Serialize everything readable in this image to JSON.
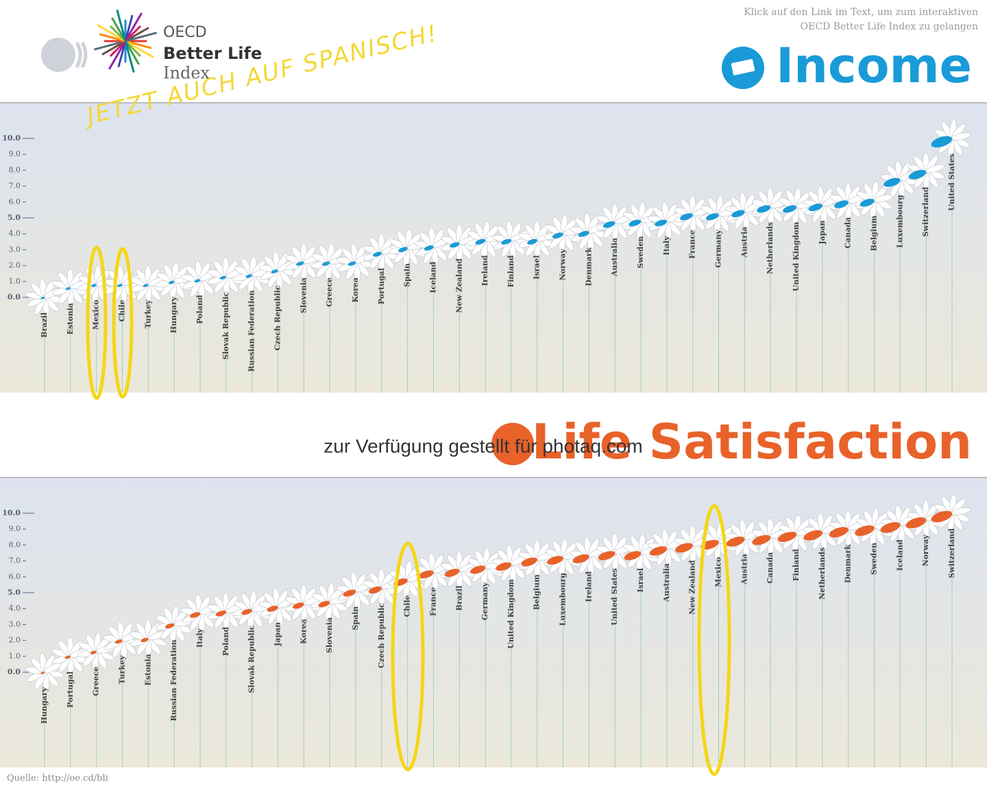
{
  "header": {
    "logo_top": "OECD",
    "logo_middle": "Better Life",
    "logo_bottom": "Index",
    "stamp": "JETZT AUCH AUF SPANISCH!",
    "note": [
      "Klick auf den Link im Text, um zum interaktiven",
      "OECD Better Life Index zu gelangen"
    ]
  },
  "watermark": "zur Verfügung gestellt für photaq.com",
  "footer": {
    "source": "Quelle: http://oe.cd/bli"
  },
  "chart_data": [
    {
      "type": "flower",
      "title": "Income",
      "color": "#1a9bd7",
      "categories": [
        "Brazil",
        "Estonia",
        "Mexico",
        "Chile",
        "Turkey",
        "Hungary",
        "Poland",
        "Slovak Republic",
        "Russian Federation",
        "Czech Republic",
        "Slovenia",
        "Greece",
        "Korea",
        "Portugal",
        "Spain",
        "Iceland",
        "New Zealand",
        "Ireland",
        "Finland",
        "Israel",
        "Norway",
        "Denmark",
        "Australia",
        "Sweden",
        "Italy",
        "France",
        "Germany",
        "Austria",
        "Netherlands",
        "United Kingdom",
        "Japan",
        "Canada",
        "Belgium",
        "Luxembourg",
        "Switzerland",
        "United States"
      ],
      "values": [
        0.0,
        0.6,
        0.8,
        0.8,
        0.8,
        1.0,
        1.1,
        1.3,
        1.4,
        1.7,
        2.2,
        2.2,
        2.2,
        2.8,
        3.1,
        3.2,
        3.4,
        3.6,
        3.6,
        3.6,
        4.0,
        4.1,
        4.7,
        4.8,
        4.8,
        5.2,
        5.2,
        5.4,
        5.7,
        5.7,
        5.8,
        6.0,
        6.1,
        7.4,
        7.9,
        10.0
      ],
      "ylim": [
        0,
        10
      ],
      "yticks": [
        {
          "value": 0,
          "label": "0.0"
        },
        {
          "value": 1,
          "label": "1.0"
        },
        {
          "value": 2,
          "label": "2.0"
        },
        {
          "value": 3,
          "label": "3.0"
        },
        {
          "value": 4,
          "label": "4.0"
        },
        {
          "value": 5,
          "label": "5.0"
        },
        {
          "value": 6,
          "label": "6.0"
        },
        {
          "value": 7,
          "label": "7.0"
        },
        {
          "value": 8,
          "label": "8.0"
        },
        {
          "value": 9,
          "label": "9.0"
        },
        {
          "value": 10,
          "label": "10.0"
        }
      ]
    },
    {
      "type": "flower",
      "title": "Life Satisfaction",
      "color": "#e8622a",
      "categories": [
        "Hungary",
        "Portugal",
        "Greece",
        "Turkey",
        "Estonia",
        "Russian Federation",
        "Italy",
        "Poland",
        "Slovak Republic",
        "Japan",
        "Korea",
        "Slovenia",
        "Spain",
        "Czech Republic",
        "Chile",
        "France",
        "Brazil",
        "Germany",
        "United Kingdom",
        "Belgium",
        "Luxembourg",
        "Ireland",
        "United States",
        "Israel",
        "Australia",
        "New Zealand",
        "Mexico",
        "Austria",
        "Canada",
        "Finland",
        "Netherlands",
        "Denmark",
        "Sweden",
        "Iceland",
        "Norway",
        "Switzerland"
      ],
      "values": [
        0.0,
        1.0,
        1.3,
        2.0,
        2.1,
        3.0,
        3.7,
        3.8,
        3.9,
        4.1,
        4.3,
        4.4,
        5.1,
        5.3,
        5.8,
        6.3,
        6.4,
        6.6,
        6.8,
        7.1,
        7.2,
        7.3,
        7.5,
        7.5,
        7.8,
        8.0,
        8.2,
        8.4,
        8.5,
        8.7,
        8.8,
        9.0,
        9.1,
        9.3,
        9.6,
        10.0
      ],
      "ylim": [
        0,
        10
      ],
      "yticks": [
        {
          "value": 0,
          "label": "0.0"
        },
        {
          "value": 1,
          "label": "1.0"
        },
        {
          "value": 2,
          "label": "2.0"
        },
        {
          "value": 3,
          "label": "3.0"
        },
        {
          "value": 4,
          "label": "4.0"
        },
        {
          "value": 5,
          "label": "5.0"
        },
        {
          "value": 6,
          "label": "6.0"
        },
        {
          "value": 7,
          "label": "7.0"
        },
        {
          "value": 8,
          "label": "8.0"
        },
        {
          "value": 9,
          "label": "9.0"
        },
        {
          "value": 10,
          "label": "10.0"
        }
      ]
    }
  ]
}
